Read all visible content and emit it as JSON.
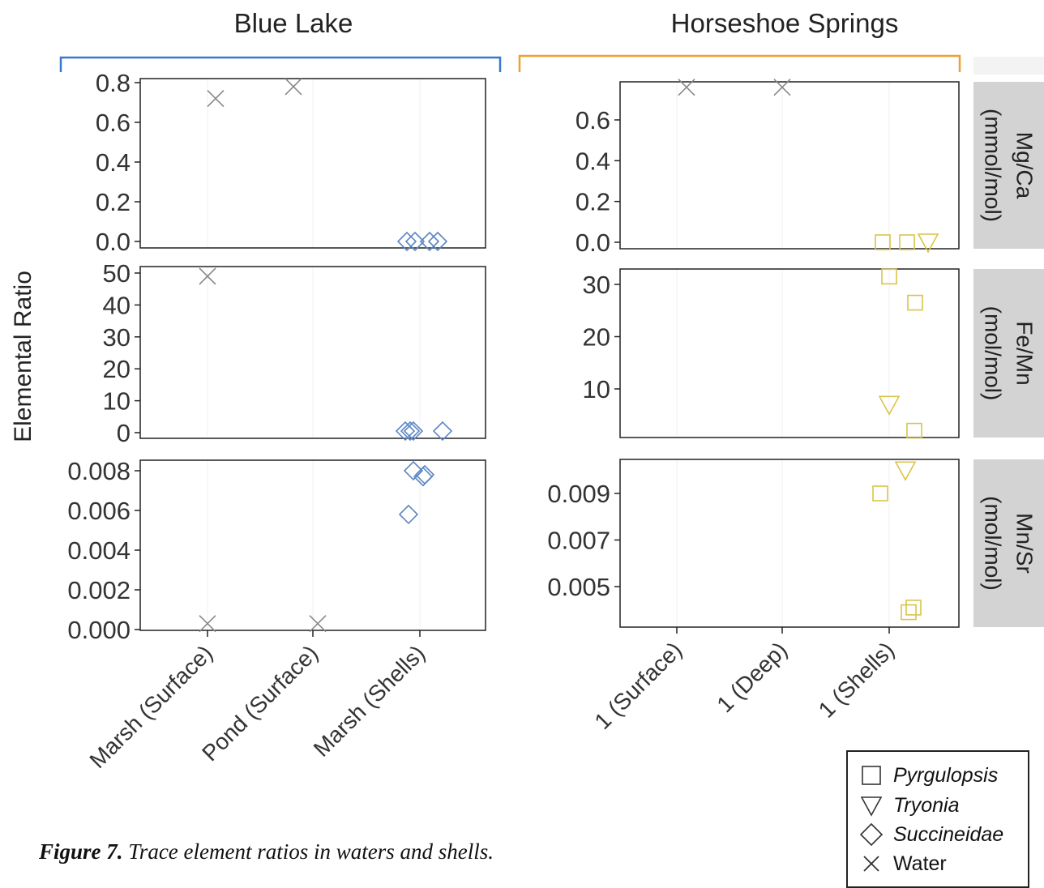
{
  "figure": {
    "caption_bold": "Figure 7.",
    "caption_text": " Trace element ratios in waters and shells.",
    "ylabel": "Elemental Ratio",
    "colors": {
      "blue_lake": "#5b86c4",
      "horseshoe": "#d9c44a",
      "water": "#888888",
      "blue_bracket": "#3b78c9",
      "orange_bracket": "#f0a030",
      "strip": "#d3d3d3"
    }
  },
  "legend": [
    {
      "shape": "square",
      "label": "Pyrgulopsis",
      "italic": true
    },
    {
      "shape": "triangle",
      "label": "Tryonia",
      "italic": true
    },
    {
      "shape": "diamond",
      "label": "Succineidae",
      "italic": true
    },
    {
      "shape": "x",
      "label": "Water",
      "italic": false
    }
  ],
  "chart_data": [
    {
      "type": "scatter",
      "facet": "Blue Lake",
      "row": "Mg/Ca (mmol/mol)",
      "categories": [
        "Marsh (Surface)",
        "Pond (Surface)",
        "Marsh (Shells)"
      ],
      "ylim": [
        0,
        0.8
      ],
      "yticks": [
        "0.0",
        "0.2",
        "0.4",
        "0.6",
        "0.8"
      ],
      "yticks_values": [
        0,
        0.2,
        0.4,
        0.6,
        0.8
      ],
      "points": [
        {
          "x": "Marsh (Surface)",
          "y": 0.72,
          "shape": "x"
        },
        {
          "x": "Pond (Surface)",
          "y": 0.78,
          "shape": "x"
        },
        {
          "x": "Marsh (Shells)",
          "y": 0.0,
          "shape": "diamond"
        },
        {
          "x": "Marsh (Shells)",
          "y": 0.0,
          "shape": "diamond"
        },
        {
          "x": "Marsh (Shells)",
          "y": 0.0,
          "shape": "diamond"
        },
        {
          "x": "Marsh (Shells)",
          "y": 0.0,
          "shape": "diamond"
        }
      ]
    },
    {
      "type": "scatter",
      "facet": "Blue Lake",
      "row": "Fe/Mn (mol/mol)",
      "categories": [
        "Marsh (Surface)",
        "Pond (Surface)",
        "Marsh (Shells)"
      ],
      "ylim": [
        0,
        50
      ],
      "yticks": [
        "0",
        "10",
        "20",
        "30",
        "40",
        "50"
      ],
      "yticks_values": [
        0,
        10,
        20,
        30,
        40,
        50
      ],
      "points": [
        {
          "x": "Marsh (Surface)",
          "y": 49,
          "shape": "x"
        },
        {
          "x": "Marsh (Shells)",
          "y": 0.5,
          "shape": "diamond"
        },
        {
          "x": "Marsh (Shells)",
          "y": 0.5,
          "shape": "diamond"
        },
        {
          "x": "Marsh (Shells)",
          "y": 0.5,
          "shape": "diamond"
        },
        {
          "x": "Marsh (Shells)",
          "y": 0.5,
          "shape": "diamond"
        }
      ]
    },
    {
      "type": "scatter",
      "facet": "Blue Lake",
      "row": "Mn/Sr (mol/mol)",
      "categories": [
        "Marsh (Surface)",
        "Pond (Surface)",
        "Marsh (Shells)"
      ],
      "ylim": [
        0,
        0.0084
      ],
      "yticks": [
        "0.000",
        "0.002",
        "0.004",
        "0.006",
        "0.008"
      ],
      "yticks_values": [
        0,
        0.002,
        0.004,
        0.006,
        0.008
      ],
      "points": [
        {
          "x": "Marsh (Surface)",
          "y": 0.0003,
          "shape": "x"
        },
        {
          "x": "Pond (Surface)",
          "y": 0.0003,
          "shape": "x"
        },
        {
          "x": "Marsh (Shells)",
          "y": 0.008,
          "shape": "diamond"
        },
        {
          "x": "Marsh (Shells)",
          "y": 0.0078,
          "shape": "diamond"
        },
        {
          "x": "Marsh (Shells)",
          "y": 0.0077,
          "shape": "diamond"
        },
        {
          "x": "Marsh (Shells)",
          "y": 0.0058,
          "shape": "diamond"
        }
      ]
    },
    {
      "type": "scatter",
      "facet": "Horseshoe Springs",
      "row": "Mg/Ca (mmol/mol)",
      "categories": [
        "1 (Surface)",
        "1 (Deep)",
        "1 (Shells)"
      ],
      "ylim": [
        0,
        0.78
      ],
      "yticks": [
        "0.0",
        "0.2",
        "0.4",
        "0.6"
      ],
      "yticks_values": [
        0,
        0.2,
        0.4,
        0.6
      ],
      "points": [
        {
          "x": "1 (Surface)",
          "y": 0.76,
          "shape": "x"
        },
        {
          "x": "1 (Deep)",
          "y": 0.76,
          "shape": "x"
        },
        {
          "x": "1 (Shells)",
          "y": 0.0,
          "shape": "square"
        },
        {
          "x": "1 (Shells)",
          "y": 0.0,
          "shape": "square"
        },
        {
          "x": "1 (Shells)",
          "y": 0.0,
          "shape": "triangle"
        }
      ]
    },
    {
      "type": "scatter",
      "facet": "Horseshoe Springs",
      "row": "Fe/Mn (mol/mol)",
      "categories": [
        "1 (Surface)",
        "1 (Deep)",
        "1 (Shells)"
      ],
      "ylim": [
        1,
        33
      ],
      "yticks": [
        "10",
        "20",
        "30"
      ],
      "yticks_values": [
        10,
        20,
        30
      ],
      "points": [
        {
          "x": "1 (Shells)",
          "y": 31.5,
          "shape": "square"
        },
        {
          "x": "1 (Shells)",
          "y": 26.5,
          "shape": "square"
        },
        {
          "x": "1 (Shells)",
          "y": 7,
          "shape": "triangle"
        },
        {
          "x": "1 (Shells)",
          "y": 2,
          "shape": "square"
        }
      ]
    },
    {
      "type": "scatter",
      "facet": "Horseshoe Springs",
      "row": "Mn/Sr (mol/mol)",
      "categories": [
        "1 (Surface)",
        "1 (Deep)",
        "1 (Shells)"
      ],
      "ylim": [
        0.0037,
        0.0105
      ],
      "yticks": [
        "0.005",
        "0.007",
        "0.009"
      ],
      "yticks_values": [
        0.005,
        0.007,
        0.009
      ],
      "points": [
        {
          "x": "1 (Shells)",
          "y": 0.009,
          "shape": "square"
        },
        {
          "x": "1 (Shells)",
          "y": 0.01,
          "shape": "triangle"
        },
        {
          "x": "1 (Shells)",
          "y": 0.0039,
          "shape": "square"
        },
        {
          "x": "1 (Shells)",
          "y": 0.0041,
          "shape": "square"
        }
      ]
    }
  ]
}
